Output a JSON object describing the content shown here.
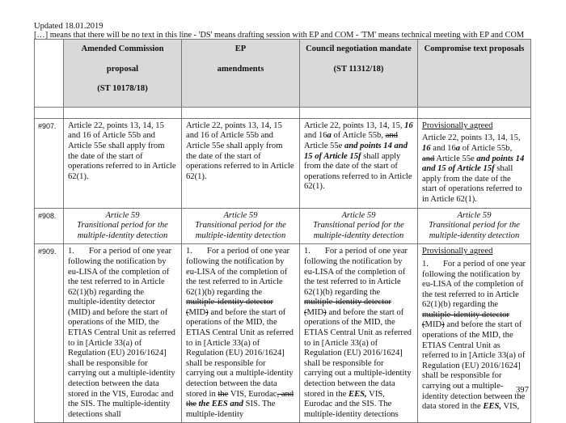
{
  "header": {
    "updated": "Updated 18.01.2019",
    "legend": "[…] means that there will be no text in this line - 'DS' means drafting session with EP and COM - 'TM' means technical meeting with EP and COM"
  },
  "columns": [
    [
      "Amended Commission",
      "proposal",
      "(ST 10178/18)"
    ],
    [
      "EP",
      "amendments"
    ],
    [
      "Council negotiation mandate",
      "(ST 11312/18)"
    ],
    [
      "Compromise text proposals"
    ]
  ],
  "rows": [
    {
      "num": "#907.",
      "cells": [
        {
          "segs": [
            [
              "Article 22, points 13, 14, 15 and 16 of Article 55b and Article 55e shall apply from the date of the start of operations referred to in Article 62(1).",
              ""
            ]
          ]
        },
        {
          "segs": [
            [
              "Article 22, points 13, 14, 15 and 16 of Article 55b and Article 55e shall apply from the date of the start of operations referred to in Article 62(1).",
              ""
            ]
          ]
        },
        {
          "segs": [
            [
              "Article 22, points 13, 14, 15, ",
              ""
            ],
            [
              "16",
              "bi"
            ],
            [
              " and 16",
              ""
            ],
            [
              "a",
              "bi"
            ],
            [
              " of Article 55b, ",
              ""
            ],
            [
              "and",
              "s"
            ],
            [
              " Article 55e ",
              ""
            ],
            [
              "and points 14 and 15 of Article 15f",
              "bi"
            ],
            [
              " shall apply from the date of the start of operations referred to in Article 62(1).",
              ""
            ]
          ]
        },
        {
          "status": "Provisionally agreed",
          "segs": [
            [
              "Article 22, points 13, 14, 15, ",
              ""
            ],
            [
              "16",
              "bi"
            ],
            [
              " and 16",
              ""
            ],
            [
              "a",
              "bi"
            ],
            [
              " of Article 55b, ",
              ""
            ],
            [
              "and",
              "s"
            ],
            [
              " Article 55e ",
              ""
            ],
            [
              "and points 14 and 15 of Article 15f",
              "bi"
            ],
            [
              " shall apply from the date of the start of operations referred to in Article 62(1).",
              ""
            ]
          ]
        }
      ]
    },
    {
      "num": "#908.",
      "center": true,
      "cells": [
        {
          "lines": [
            "Article 59",
            "Transitional period for the",
            "multiple-identity detection"
          ]
        },
        {
          "lines": [
            "Article 59",
            "Transitional period for the",
            "multiple-identity detection"
          ]
        },
        {
          "lines": [
            "Article 59",
            "Transitional period for the",
            "multiple-identity detection"
          ]
        },
        {
          "lines": [
            "Article 59",
            "Transitional period for the",
            "multiple-identity detection"
          ]
        }
      ]
    },
    {
      "num": "#909.",
      "cells": [
        {
          "segs": [
            [
              "1.",
              "tab"
            ],
            [
              "For a period of one year following the notification by eu-LISA of the completion of the test referred to in Article 62(1)(b) regarding the multiple-identity detector (MID) and before the start of operations of the MID, the ETIAS Central Unit as referred to in [Article 33(a) of Regulation (EU) 2016/1624] shall be responsible for carrying out a multiple-identity detection between the data stored in the VIS, Eurodac and the SIS. The multiple-identity detections shall",
              ""
            ]
          ]
        },
        {
          "segs": [
            [
              "1.",
              "tab"
            ],
            [
              "For a period of one year following the notification by eu-LISA of the completion of the test referred to in Article 62(1)(b) regarding the ",
              ""
            ],
            [
              "multiple-identity detector (",
              "s"
            ],
            [
              "MID",
              ""
            ],
            [
              ")",
              "s"
            ],
            [
              " and before the start of operations of the MID, the ETIAS Central Unit as referred to in [Article 33(a) of Regulation (EU) 2016/1624] shall be responsible for carrying out a multiple-identity detection between the data stored in ",
              ""
            ],
            [
              "the",
              "s"
            ],
            [
              " VIS, Eurodac",
              ""
            ],
            [
              ", and the",
              "s"
            ],
            [
              " ",
              ""
            ],
            [
              "the EES and",
              "bi"
            ],
            [
              " SIS. The multiple-identity",
              ""
            ]
          ]
        },
        {
          "segs": [
            [
              "1.",
              "tab"
            ],
            [
              "For a period of one year following the notification by eu-LISA of the completion of the test referred to in Article 62(1)(b) regarding the ",
              ""
            ],
            [
              "multiple-identity detector (",
              "s"
            ],
            [
              "MID",
              ""
            ],
            [
              ")",
              "s"
            ],
            [
              " and before the start of operations of the MID, the ETIAS Central Unit as referred to in [Article 33(a) of Regulation (EU) 2016/1624] shall be responsible for carrying out a multiple-identity detection between the data stored in the ",
              ""
            ],
            [
              "EES,",
              "bi"
            ],
            [
              " VIS, Eurodac and the SIS. The multiple-identity detections",
              ""
            ]
          ]
        },
        {
          "status": "Provisionally agreed",
          "segs": [
            [
              "1.",
              "tab"
            ],
            [
              "For a period of one year following the notification by eu-LISA of the completion of the test referred to in Article 62(1)(b) regarding the ",
              ""
            ],
            [
              "multiple-identity detector (",
              "s"
            ],
            [
              "MID",
              ""
            ],
            [
              ")",
              "s"
            ],
            [
              " and before the start of operations of the MID, the ETIAS Central Unit as referred to in [Article 33(a) of Regulation (EU) 2016/1624] shall be responsible for carrying out a multiple-identity detection between the data stored in the ",
              ""
            ],
            [
              "EES,",
              "bi"
            ],
            [
              " VIS,",
              ""
            ]
          ]
        }
      ]
    }
  ],
  "page_number": "397"
}
